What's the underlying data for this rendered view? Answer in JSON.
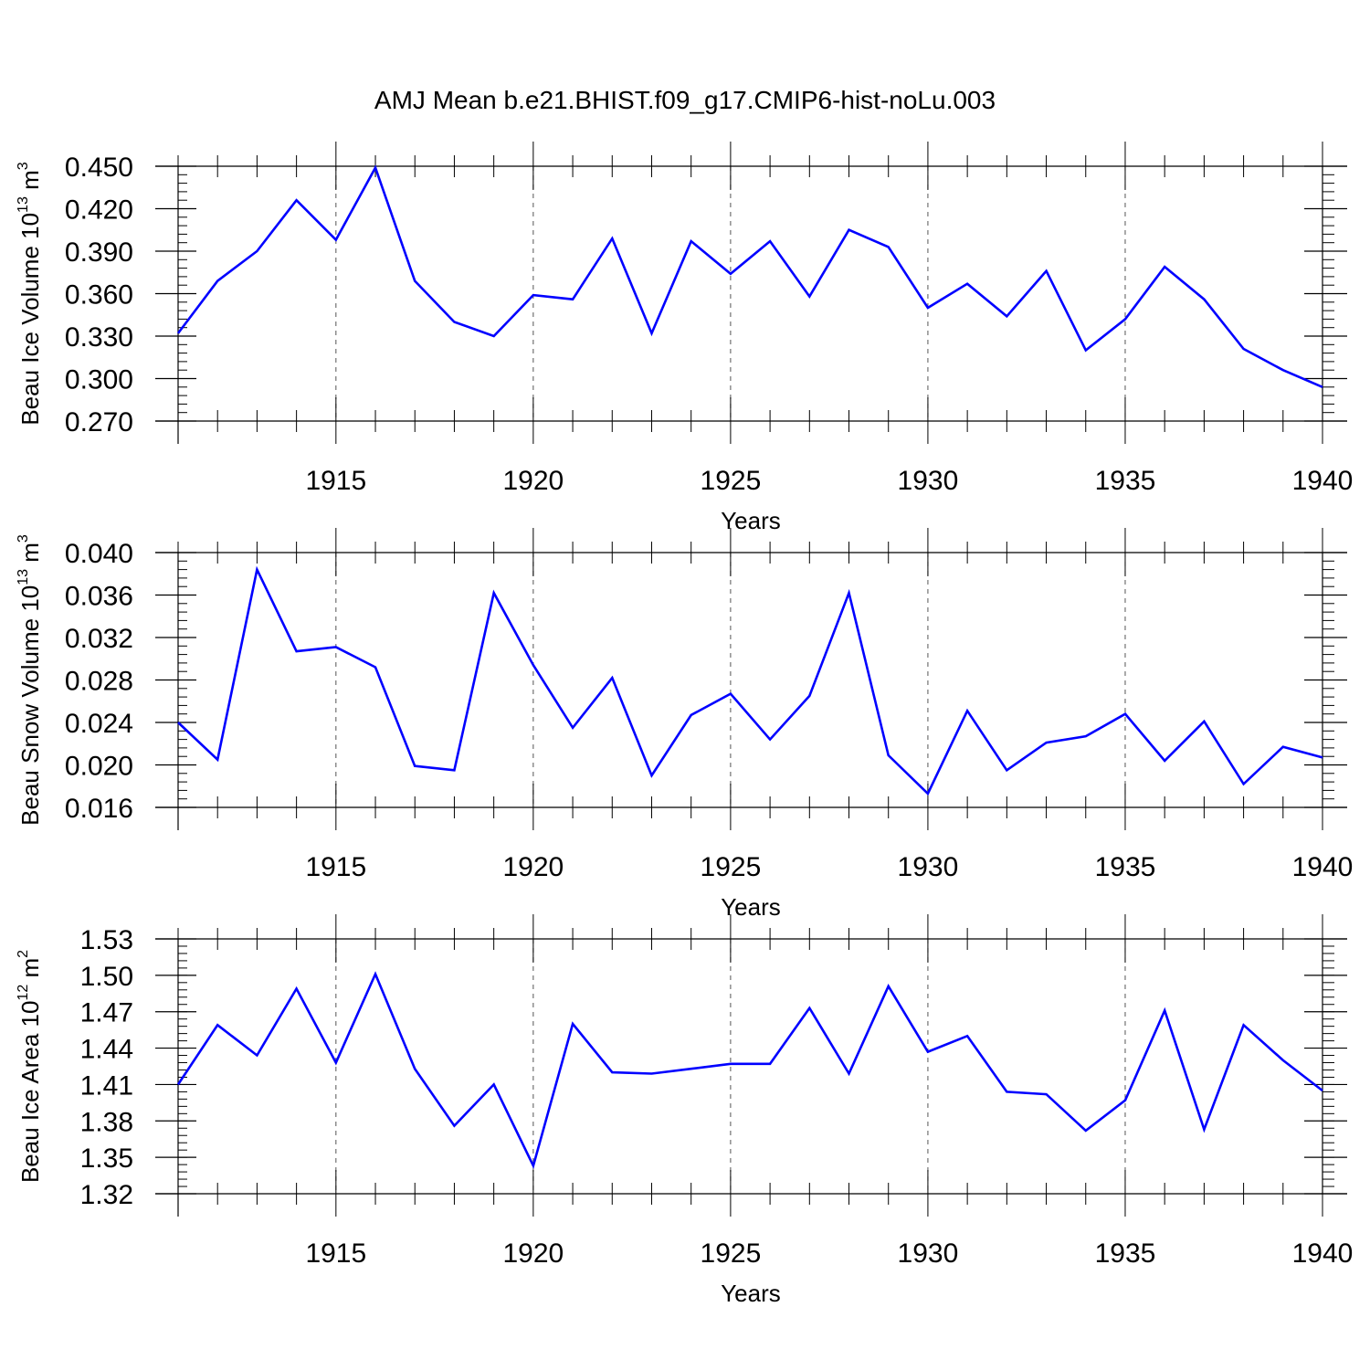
{
  "title": "AMJ Mean b.e21.BHIST.f09_g17.CMIP6-hist-noLu.003",
  "chart_data": [
    {
      "type": "line",
      "ylabel_main": "Beau Ice Volume 10",
      "ylabel_exp": "13",
      "ylabel_unit": " m",
      "ylabel_unit_exp": "3",
      "xlabel": "Years",
      "xlim": [
        1911,
        1940
      ],
      "ylim": [
        0.27,
        0.45
      ],
      "x_ticks": [
        1915,
        1920,
        1925,
        1930,
        1935,
        1940
      ],
      "x_tick_labels": [
        "1915",
        "1920",
        "1925",
        "1930",
        "1935",
        "1940"
      ],
      "y_ticks": [
        0.27,
        0.3,
        0.33,
        0.36,
        0.39,
        0.42,
        0.45
      ],
      "y_tick_labels": [
        "0.270",
        "0.300",
        "0.330",
        "0.360",
        "0.390",
        "0.420",
        "0.450"
      ],
      "y_minor_step": 0.006,
      "line_color": "#0000ff",
      "grid": "vertical dashed at major x ticks",
      "x": [
        1911,
        1912,
        1913,
        1914,
        1915,
        1916,
        1917,
        1918,
        1919,
        1920,
        1921,
        1922,
        1923,
        1924,
        1925,
        1926,
        1927,
        1928,
        1929,
        1930,
        1931,
        1932,
        1933,
        1934,
        1935,
        1936,
        1937,
        1938,
        1939,
        1940
      ],
      "values": [
        0.332,
        0.369,
        0.39,
        0.426,
        0.398,
        0.449,
        0.369,
        0.34,
        0.33,
        0.359,
        0.356,
        0.399,
        0.332,
        0.397,
        0.374,
        0.397,
        0.358,
        0.405,
        0.393,
        0.35,
        0.367,
        0.344,
        0.376,
        0.32,
        0.342,
        0.379,
        0.356,
        0.321,
        0.306,
        0.294
      ]
    },
    {
      "type": "line",
      "ylabel_main": "Beau Snow Volume 10",
      "ylabel_exp": "13",
      "ylabel_unit": " m",
      "ylabel_unit_exp": "3",
      "xlabel": "Years",
      "xlim": [
        1911,
        1940
      ],
      "ylim": [
        0.016,
        0.04
      ],
      "x_ticks": [
        1915,
        1920,
        1925,
        1930,
        1935,
        1940
      ],
      "x_tick_labels": [
        "1915",
        "1920",
        "1925",
        "1930",
        "1935",
        "1940"
      ],
      "y_ticks": [
        0.016,
        0.02,
        0.024,
        0.028,
        0.032,
        0.036,
        0.04
      ],
      "y_tick_labels": [
        "0.016",
        "0.020",
        "0.024",
        "0.028",
        "0.032",
        "0.036",
        "0.040"
      ],
      "y_minor_step": 0.0008,
      "line_color": "#0000ff",
      "grid": "vertical dashed at major x ticks",
      "x": [
        1911,
        1912,
        1913,
        1914,
        1915,
        1916,
        1917,
        1918,
        1919,
        1920,
        1921,
        1922,
        1923,
        1924,
        1925,
        1926,
        1927,
        1928,
        1929,
        1930,
        1931,
        1932,
        1933,
        1934,
        1935,
        1936,
        1937,
        1938,
        1939,
        1940
      ],
      "values": [
        0.024,
        0.0205,
        0.0384,
        0.0307,
        0.0311,
        0.0292,
        0.0199,
        0.0195,
        0.0362,
        0.0294,
        0.0235,
        0.0282,
        0.019,
        0.0247,
        0.0267,
        0.0224,
        0.0265,
        0.0362,
        0.0209,
        0.0173,
        0.0251,
        0.0195,
        0.0221,
        0.0227,
        0.0248,
        0.0204,
        0.0241,
        0.0182,
        0.0217,
        0.0207
      ]
    },
    {
      "type": "line",
      "ylabel_main": "Beau Ice Area 10",
      "ylabel_exp": "12",
      "ylabel_unit": " m",
      "ylabel_unit_exp": "2",
      "xlabel": "Years",
      "xlim": [
        1911,
        1940
      ],
      "ylim": [
        1.32,
        1.53
      ],
      "x_ticks": [
        1915,
        1920,
        1925,
        1930,
        1935,
        1940
      ],
      "x_tick_labels": [
        "1915",
        "1920",
        "1925",
        "1930",
        "1935",
        "1940"
      ],
      "y_ticks": [
        1.32,
        1.35,
        1.38,
        1.41,
        1.44,
        1.47,
        1.5,
        1.53
      ],
      "y_tick_labels": [
        "1.32",
        "1.35",
        "1.38",
        "1.41",
        "1.44",
        "1.47",
        "1.50",
        "1.53"
      ],
      "y_minor_step": 0.006,
      "line_color": "#0000ff",
      "grid": "vertical dashed at major x ticks",
      "x": [
        1911,
        1912,
        1913,
        1914,
        1915,
        1916,
        1917,
        1918,
        1919,
        1920,
        1921,
        1922,
        1923,
        1924,
        1925,
        1926,
        1927,
        1928,
        1929,
        1930,
        1931,
        1932,
        1933,
        1934,
        1935,
        1936,
        1937,
        1938,
        1939,
        1940
      ],
      "values": [
        1.41,
        1.459,
        1.434,
        1.489,
        1.428,
        1.501,
        1.423,
        1.376,
        1.41,
        1.343,
        1.46,
        1.42,
        1.419,
        1.423,
        1.427,
        1.427,
        1.473,
        1.419,
        1.491,
        1.437,
        1.45,
        1.404,
        1.402,
        1.372,
        1.397,
        1.471,
        1.373,
        1.459,
        1.43,
        1.405
      ]
    }
  ]
}
